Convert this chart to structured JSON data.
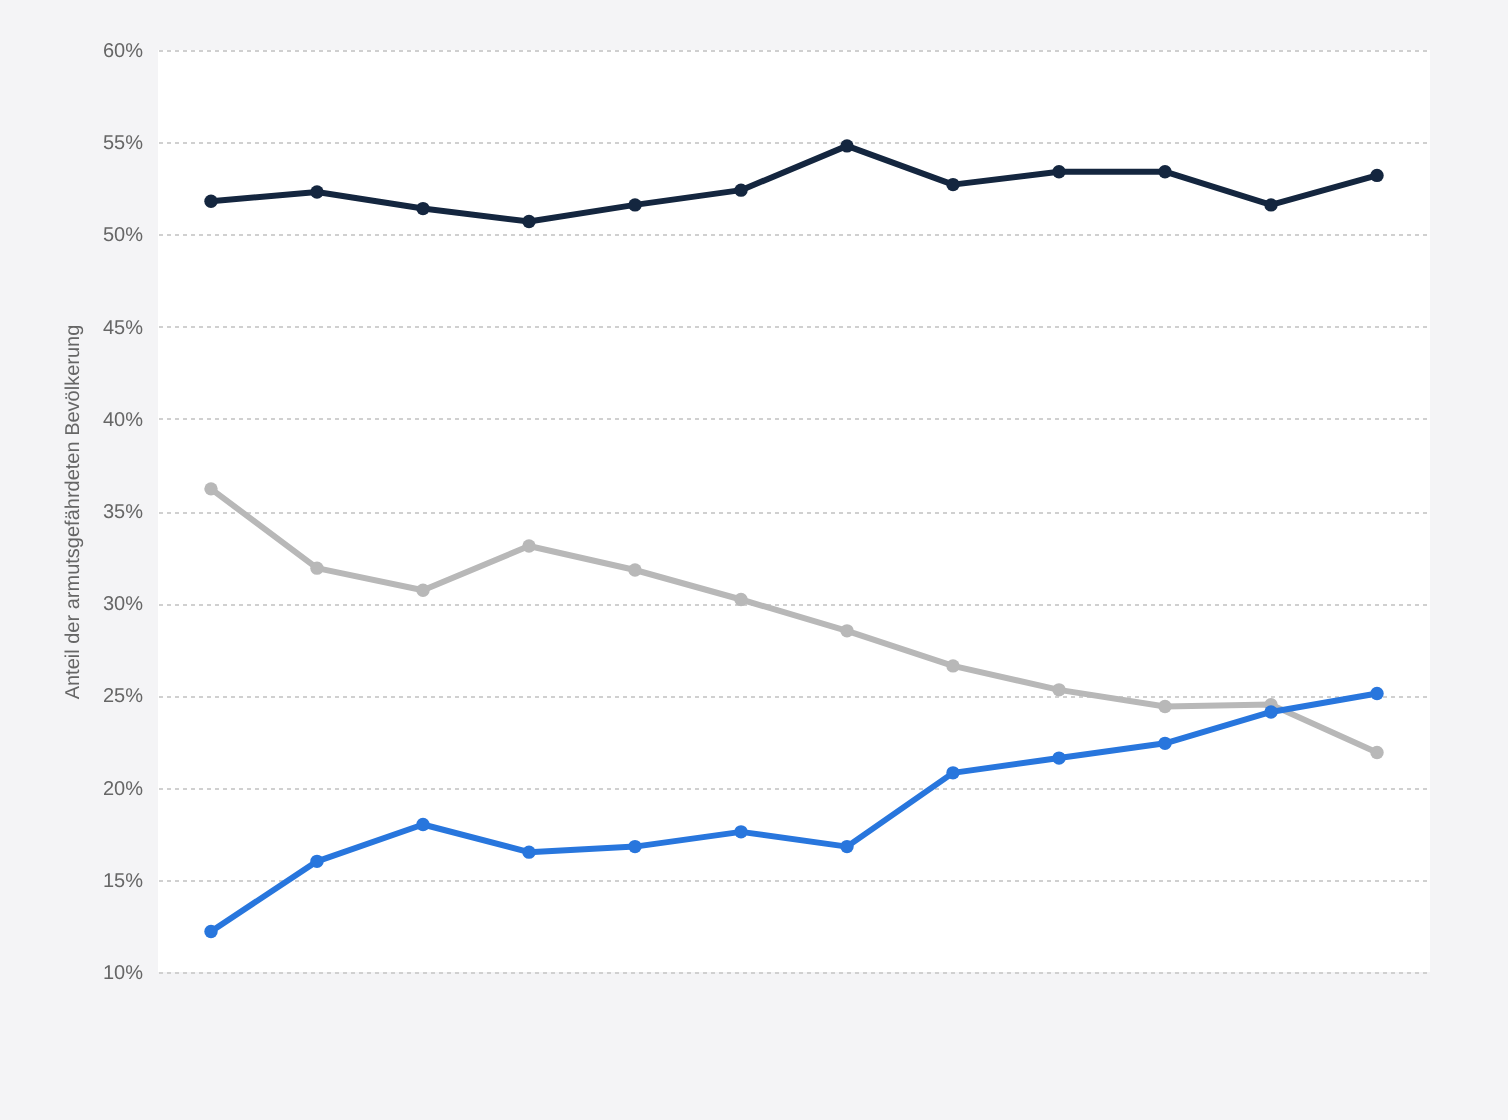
{
  "chart_data": {
    "type": "line",
    "ylabel": "Anteil der armutsgefährdeten Bevölkerung",
    "categories": [
      null,
      null,
      null,
      null,
      null,
      null,
      null,
      null,
      null,
      null,
      null,
      null
    ],
    "series": [
      {
        "color": "#14263f",
        "values": [
          51.8,
          52.3,
          51.4,
          50.7,
          51.6,
          52.4,
          54.8,
          52.7,
          53.4,
          53.4,
          51.6,
          53.2
        ]
      },
      {
        "color": "#b8b8b8",
        "values": [
          36.2,
          31.9,
          30.7,
          33.1,
          31.8,
          30.2,
          28.5,
          26.6,
          25.3,
          24.4,
          24.5,
          21.9
        ]
      },
      {
        "color": "#2876dd",
        "values": [
          12.2,
          16.0,
          18.0,
          16.5,
          16.8,
          17.6,
          16.8,
          20.8,
          21.6,
          22.4,
          24.1,
          25.1
        ]
      }
    ],
    "ylim": [
      10,
      60
    ],
    "yticks": [
      {
        "value": 10,
        "label": "10%"
      },
      {
        "value": 15,
        "label": "15%"
      },
      {
        "value": 20,
        "label": "20%"
      },
      {
        "value": 25,
        "label": "25%"
      },
      {
        "value": 30,
        "label": "30%"
      },
      {
        "value": 35,
        "label": "35%"
      },
      {
        "value": 40,
        "label": "40%"
      },
      {
        "value": 45,
        "label": "45%"
      },
      {
        "value": 50,
        "label": "50%"
      },
      {
        "value": 55,
        "label": "55%"
      },
      {
        "value": 60,
        "label": "60%"
      }
    ],
    "grid": "y",
    "tick_labels": "y",
    "marker": "circle",
    "line_style": "solid"
  }
}
